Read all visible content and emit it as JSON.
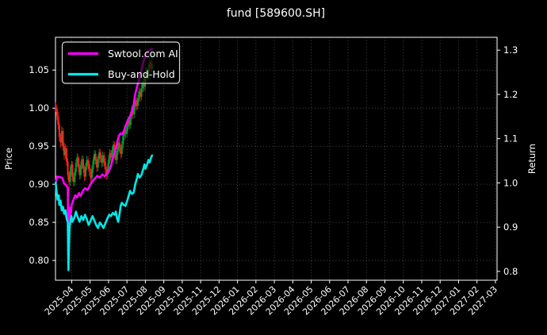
{
  "chart_data": {
    "type": "candlestick+line",
    "title": "fund [589600.SH]",
    "background": "#000000",
    "text_color": "#ffffff",
    "grid": true,
    "left_axis": {
      "label": "Price",
      "tick_labels": [
        "0.80",
        "0.85",
        "0.90",
        "0.95",
        "1.00",
        "1.05"
      ],
      "tick_values": [
        0.8,
        0.85,
        0.9,
        0.95,
        1.0,
        1.05
      ],
      "range": [
        0.774,
        1.093
      ]
    },
    "right_axis": {
      "label": "Return",
      "tick_labels": [
        "0.8",
        "0.9",
        "1.0",
        "1.1",
        "1.2",
        "1.3"
      ],
      "tick_values": [
        0.8,
        0.9,
        1.0,
        1.1,
        1.2,
        1.3
      ],
      "range": [
        0.78,
        1.329
      ]
    },
    "x_axis": {
      "tick_labels": [
        "2025-04",
        "2025-05",
        "2025-06",
        "2025-07",
        "2025-08",
        "2025-09",
        "2025-10",
        "2025-11",
        "2025-12",
        "2026-01",
        "2026-02",
        "2026-03",
        "2026-04",
        "2026-05",
        "2026-06",
        "2026-07",
        "2026-08",
        "2026-09",
        "2026-10",
        "2026-11",
        "2026-12",
        "2027-01",
        "2027-02",
        "2027-03"
      ],
      "first_tick_month": "2025-04",
      "range_months": [
        -0.88,
        23.09
      ],
      "label_rotation_deg": -45
    },
    "legend": {
      "position": "upper left",
      "entries": [
        {
          "label": "Swtool.com AI",
          "color": "#ff00ff"
        },
        {
          "label": "Buy-and-Hold",
          "color": "#00e8e8"
        }
      ]
    },
    "candles": {
      "up_color": "#00a030",
      "down_color": "#ff2020",
      "ohlc": [
        [
          "2025-03-05",
          1.002,
          1.008,
          0.995,
          1.0
        ],
        [
          "2025-03-07",
          1.0,
          1.005,
          0.984,
          0.99
        ],
        [
          "2025-03-09",
          0.99,
          0.995,
          0.972,
          0.978
        ],
        [
          "2025-03-11",
          0.978,
          0.983,
          0.956,
          0.962
        ],
        [
          "2025-03-13",
          0.962,
          0.967,
          0.948,
          0.955
        ],
        [
          "2025-03-15",
          0.955,
          0.976,
          0.95,
          0.97
        ],
        [
          "2025-03-17",
          0.97,
          0.974,
          0.944,
          0.95
        ],
        [
          "2025-03-19",
          0.95,
          0.955,
          0.932,
          0.938
        ],
        [
          "2025-03-21",
          0.938,
          0.953,
          0.933,
          0.947
        ],
        [
          "2025-03-23",
          0.947,
          0.951,
          0.924,
          0.93
        ],
        [
          "2025-03-25",
          0.93,
          0.934,
          0.906,
          0.912
        ],
        [
          "2025-03-27",
          0.912,
          0.916,
          0.885,
          0.903
        ],
        [
          "2025-03-29",
          0.903,
          0.924,
          0.898,
          0.918
        ],
        [
          "2025-03-31",
          0.918,
          0.931,
          0.912,
          0.926
        ],
        [
          "2025-04-02",
          0.926,
          0.93,
          0.904,
          0.91
        ],
        [
          "2025-04-04",
          0.91,
          0.915,
          0.897,
          0.903
        ],
        [
          "2025-04-06",
          0.903,
          0.921,
          0.898,
          0.916
        ],
        [
          "2025-04-08",
          0.916,
          0.933,
          0.911,
          0.928
        ],
        [
          "2025-04-10",
          0.928,
          0.941,
          0.923,
          0.935
        ],
        [
          "2025-04-12",
          0.935,
          0.939,
          0.916,
          0.922
        ],
        [
          "2025-04-14",
          0.922,
          0.927,
          0.906,
          0.912
        ],
        [
          "2025-04-16",
          0.912,
          0.93,
          0.907,
          0.925
        ],
        [
          "2025-04-18",
          0.925,
          0.938,
          0.92,
          0.933
        ],
        [
          "2025-04-20",
          0.933,
          0.937,
          0.915,
          0.921
        ],
        [
          "2025-04-22",
          0.921,
          0.925,
          0.904,
          0.91
        ],
        [
          "2025-04-24",
          0.91,
          0.928,
          0.905,
          0.923
        ],
        [
          "2025-04-26",
          0.923,
          0.937,
          0.918,
          0.932
        ],
        [
          "2025-04-28",
          0.932,
          0.937,
          0.92,
          0.926
        ],
        [
          "2025-04-30",
          0.926,
          0.93,
          0.911,
          0.917
        ],
        [
          "2025-05-02",
          0.917,
          0.921,
          0.902,
          0.908
        ],
        [
          "2025-05-04",
          0.908,
          0.925,
          0.903,
          0.92
        ],
        [
          "2025-05-06",
          0.92,
          0.936,
          0.915,
          0.931
        ],
        [
          "2025-05-08",
          0.931,
          0.945,
          0.926,
          0.94
        ],
        [
          "2025-05-10",
          0.94,
          0.944,
          0.926,
          0.932
        ],
        [
          "2025-05-12",
          0.932,
          0.936,
          0.916,
          0.922
        ],
        [
          "2025-05-14",
          0.922,
          0.938,
          0.917,
          0.933
        ],
        [
          "2025-05-16",
          0.933,
          0.947,
          0.928,
          0.942
        ],
        [
          "2025-05-18",
          0.942,
          0.946,
          0.929,
          0.935
        ],
        [
          "2025-05-20",
          0.935,
          0.939,
          0.922,
          0.928
        ],
        [
          "2025-05-22",
          0.928,
          0.943,
          0.923,
          0.938
        ],
        [
          "2025-05-24",
          0.938,
          0.942,
          0.924,
          0.93
        ],
        [
          "2025-05-26",
          0.93,
          0.934,
          0.914,
          0.92
        ],
        [
          "2025-05-28",
          0.92,
          0.924,
          0.906,
          0.912
        ],
        [
          "2025-05-30",
          0.912,
          0.927,
          0.907,
          0.922
        ],
        [
          "2025-06-01",
          0.922,
          0.937,
          0.917,
          0.932
        ],
        [
          "2025-06-03",
          0.932,
          0.946,
          0.927,
          0.941
        ],
        [
          "2025-06-05",
          0.941,
          0.945,
          0.929,
          0.935
        ],
        [
          "2025-06-07",
          0.935,
          0.95,
          0.93,
          0.945
        ],
        [
          "2025-06-09",
          0.945,
          0.957,
          0.94,
          0.952
        ],
        [
          "2025-06-11",
          0.952,
          0.956,
          0.934,
          0.94
        ],
        [
          "2025-06-13",
          0.94,
          0.944,
          0.926,
          0.932
        ],
        [
          "2025-06-15",
          0.932,
          0.949,
          0.927,
          0.944
        ],
        [
          "2025-06-17",
          0.944,
          0.96,
          0.939,
          0.955
        ],
        [
          "2025-06-19",
          0.955,
          0.959,
          0.942,
          0.948
        ],
        [
          "2025-06-21",
          0.948,
          0.952,
          0.934,
          0.94
        ],
        [
          "2025-06-23",
          0.94,
          0.957,
          0.935,
          0.952
        ],
        [
          "2025-06-25",
          0.952,
          0.968,
          0.947,
          0.963
        ],
        [
          "2025-06-27",
          0.963,
          0.977,
          0.958,
          0.972
        ],
        [
          "2025-06-29",
          0.972,
          0.976,
          0.96,
          0.966
        ],
        [
          "2025-07-01",
          0.966,
          0.98,
          0.961,
          0.975
        ],
        [
          "2025-07-03",
          0.975,
          0.989,
          0.97,
          0.984
        ],
        [
          "2025-07-05",
          0.984,
          0.988,
          0.972,
          0.978
        ],
        [
          "2025-07-07",
          0.978,
          0.995,
          0.973,
          0.99
        ],
        [
          "2025-07-09",
          0.99,
          1.004,
          0.985,
          0.999
        ],
        [
          "2025-07-11",
          0.999,
          1.003,
          0.986,
          0.992
        ],
        [
          "2025-07-13",
          0.992,
          1.007,
          0.987,
          1.002
        ],
        [
          "2025-07-15",
          1.002,
          1.015,
          0.997,
          1.01
        ],
        [
          "2025-07-17",
          1.01,
          1.014,
          0.997,
          1.003
        ],
        [
          "2025-07-19",
          1.003,
          1.018,
          0.998,
          1.013
        ],
        [
          "2025-07-21",
          1.013,
          1.027,
          1.008,
          1.022
        ],
        [
          "2025-07-23",
          1.022,
          1.026,
          1.009,
          1.015
        ],
        [
          "2025-07-25",
          1.015,
          1.031,
          1.01,
          1.026
        ],
        [
          "2025-07-27",
          1.026,
          1.04,
          1.021,
          1.035
        ],
        [
          "2025-07-29",
          1.035,
          1.039,
          1.022,
          1.028
        ],
        [
          "2025-07-31",
          1.028,
          1.045,
          1.023,
          1.04
        ],
        [
          "2025-08-02",
          1.04,
          1.054,
          1.035,
          1.049
        ],
        [
          "2025-08-04",
          1.049,
          1.053,
          1.036,
          1.042
        ],
        [
          "2025-08-06",
          1.042,
          1.057,
          1.037,
          1.052
        ],
        [
          "2025-08-08",
          1.052,
          1.072,
          1.047,
          1.06
        ],
        [
          "2025-08-10",
          1.06,
          1.064,
          1.046,
          1.052
        ],
        [
          "2025-08-12",
          1.052,
          1.075,
          1.047,
          1.058
        ]
      ]
    },
    "series": [
      {
        "name": "Swtool.com AI",
        "color": "#ff00ff",
        "axis": "right",
        "line_width": 2.6,
        "points": [
          [
            "2025-03-05",
            1.0
          ],
          [
            "2025-03-07",
            1.014
          ],
          [
            "2025-03-12",
            1.013
          ],
          [
            "2025-03-16",
            1.011
          ],
          [
            "2025-03-19",
            0.998
          ],
          [
            "2025-03-23",
            0.994
          ],
          [
            "2025-03-25",
            0.988
          ],
          [
            "2025-03-26",
            0.822
          ],
          [
            "2025-03-27",
            0.906
          ],
          [
            "2025-03-28",
            0.944
          ],
          [
            "2025-03-30",
            0.928
          ],
          [
            "2025-04-01",
            0.95
          ],
          [
            "2025-04-04",
            0.962
          ],
          [
            "2025-04-07",
            0.972
          ],
          [
            "2025-04-10",
            0.967
          ],
          [
            "2025-04-13",
            0.977
          ],
          [
            "2025-04-16",
            0.971
          ],
          [
            "2025-04-19",
            0.981
          ],
          [
            "2025-04-23",
            0.988
          ],
          [
            "2025-04-27",
            0.984
          ],
          [
            "2025-05-01",
            0.995
          ],
          [
            "2025-05-05",
            1.004
          ],
          [
            "2025-05-09",
            1.01
          ],
          [
            "2025-05-13",
            1.016
          ],
          [
            "2025-05-17",
            1.012
          ],
          [
            "2025-05-21",
            1.019
          ],
          [
            "2025-05-25",
            1.015
          ],
          [
            "2025-05-29",
            1.021
          ],
          [
            "2025-06-02",
            1.028
          ],
          [
            "2025-06-05",
            1.038
          ],
          [
            "2025-06-08",
            1.055
          ],
          [
            "2025-06-11",
            1.07
          ],
          [
            "2025-06-14",
            1.082
          ],
          [
            "2025-06-16",
            1.096
          ],
          [
            "2025-06-18",
            1.106
          ],
          [
            "2025-06-21",
            1.112
          ],
          [
            "2025-06-24",
            1.11
          ],
          [
            "2025-06-27",
            1.12
          ],
          [
            "2025-06-30",
            1.132
          ],
          [
            "2025-07-03",
            1.143
          ],
          [
            "2025-07-06",
            1.15
          ],
          [
            "2025-07-09",
            1.162
          ],
          [
            "2025-07-12",
            1.175
          ],
          [
            "2025-07-14",
            1.196
          ],
          [
            "2025-07-16",
            1.208
          ],
          [
            "2025-07-19",
            1.224
          ],
          [
            "2025-07-22",
            1.24
          ],
          [
            "2025-07-25",
            1.254
          ],
          [
            "2025-07-27",
            1.268
          ],
          [
            "2025-07-30",
            1.282
          ],
          [
            "2025-08-02",
            1.292
          ],
          [
            "2025-08-05",
            1.297
          ],
          [
            "2025-08-08",
            1.3
          ],
          [
            "2025-08-12",
            1.303
          ]
        ]
      },
      {
        "name": "Buy-and-Hold",
        "color": "#00e8e8",
        "axis": "right",
        "line_width": 2.6,
        "points": [
          [
            "2025-03-05",
            1.0
          ],
          [
            "2025-03-06",
            0.985
          ],
          [
            "2025-03-08",
            0.962
          ],
          [
            "2025-03-10",
            0.972
          ],
          [
            "2025-03-11",
            0.95
          ],
          [
            "2025-03-13",
            0.96
          ],
          [
            "2025-03-15",
            0.938
          ],
          [
            "2025-03-17",
            0.946
          ],
          [
            "2025-03-19",
            0.93
          ],
          [
            "2025-03-21",
            0.938
          ],
          [
            "2025-03-23",
            0.92
          ],
          [
            "2025-03-25",
            0.91
          ],
          [
            "2025-03-26",
            0.803
          ],
          [
            "2025-03-27",
            0.86
          ],
          [
            "2025-03-28",
            0.9
          ],
          [
            "2025-03-31",
            0.925
          ],
          [
            "2025-04-02",
            0.912
          ],
          [
            "2025-04-05",
            0.92
          ],
          [
            "2025-04-08",
            0.935
          ],
          [
            "2025-04-11",
            0.922
          ],
          [
            "2025-04-14",
            0.912
          ],
          [
            "2025-04-17",
            0.925
          ],
          [
            "2025-04-20",
            0.916
          ],
          [
            "2025-04-23",
            0.928
          ],
          [
            "2025-04-26",
            0.918
          ],
          [
            "2025-04-29",
            0.905
          ],
          [
            "2025-05-02",
            0.915
          ],
          [
            "2025-05-05",
            0.925
          ],
          [
            "2025-05-08",
            0.915
          ],
          [
            "2025-05-11",
            0.905
          ],
          [
            "2025-05-14",
            0.898
          ],
          [
            "2025-05-17",
            0.91
          ],
          [
            "2025-05-20",
            0.905
          ],
          [
            "2025-05-23",
            0.898
          ],
          [
            "2025-05-26",
            0.908
          ],
          [
            "2025-05-29",
            0.918
          ],
          [
            "2025-06-02",
            0.928
          ],
          [
            "2025-06-05",
            0.925
          ],
          [
            "2025-06-08",
            0.932
          ],
          [
            "2025-06-11",
            0.928
          ],
          [
            "2025-06-13",
            0.935
          ],
          [
            "2025-06-15",
            0.92
          ],
          [
            "2025-06-17",
            0.912
          ],
          [
            "2025-06-19",
            0.928
          ],
          [
            "2025-06-21",
            0.948
          ],
          [
            "2025-06-23",
            0.955
          ],
          [
            "2025-06-26",
            0.95
          ],
          [
            "2025-06-29",
            0.948
          ],
          [
            "2025-07-02",
            0.962
          ],
          [
            "2025-07-04",
            0.972
          ],
          [
            "2025-07-06",
            0.982
          ],
          [
            "2025-07-09",
            0.975
          ],
          [
            "2025-07-12",
            0.978
          ],
          [
            "2025-07-15",
            0.998
          ],
          [
            "2025-07-17",
            1.008
          ],
          [
            "2025-07-19",
            1.02
          ],
          [
            "2025-07-22",
            1.012
          ],
          [
            "2025-07-25",
            1.018
          ],
          [
            "2025-07-28",
            1.032
          ],
          [
            "2025-07-30",
            1.042
          ],
          [
            "2025-08-01",
            1.032
          ],
          [
            "2025-08-04",
            1.042
          ],
          [
            "2025-08-06",
            1.052
          ],
          [
            "2025-08-08",
            1.046
          ],
          [
            "2025-08-10",
            1.056
          ],
          [
            "2025-08-12",
            1.062
          ]
        ]
      }
    ]
  }
}
